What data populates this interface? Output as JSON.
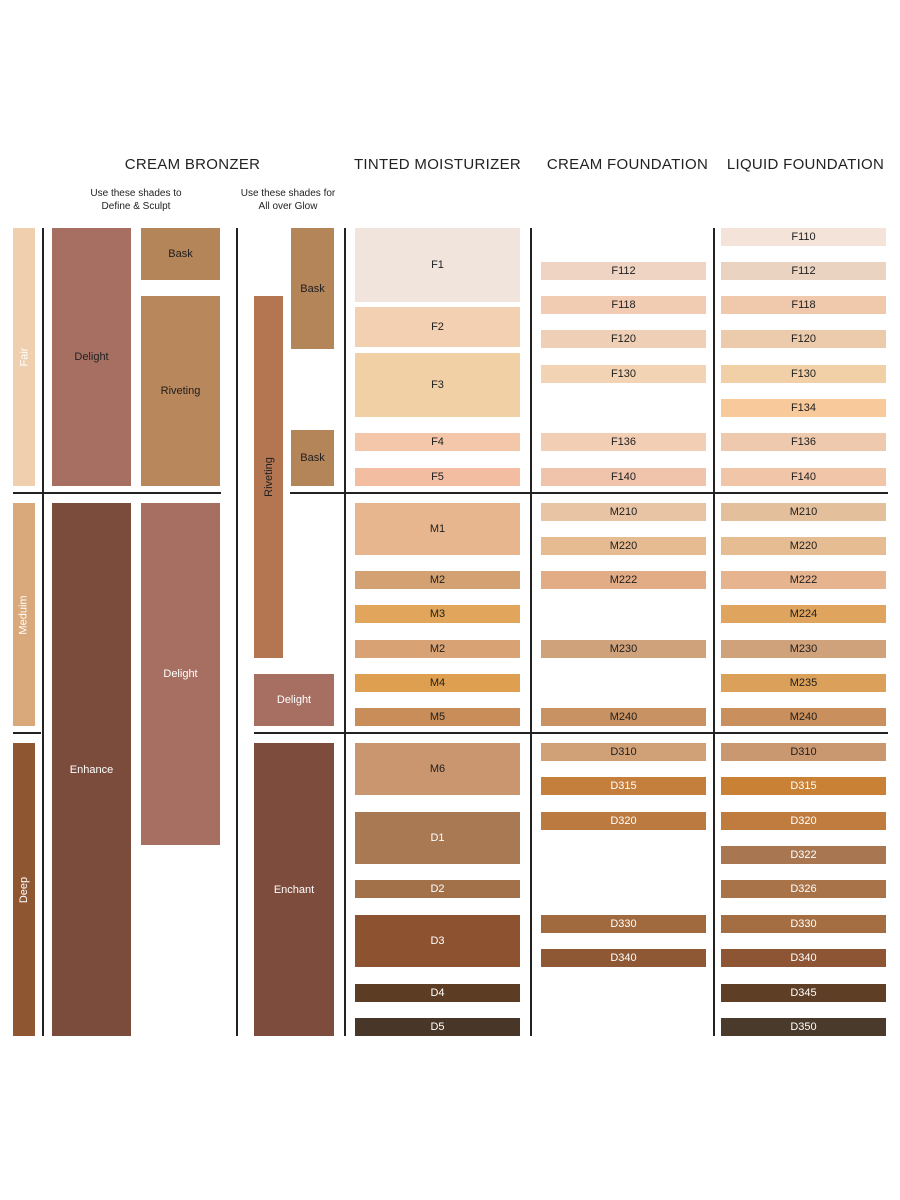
{
  "headers": {
    "cream_bronzer": "CREAM BRONZER",
    "tinted_moisturizer": "TINTED MOISTURIZER",
    "cream_foundation": "CREAM FOUNDATION",
    "liquid_foundation": "LIQUID FOUNDATION"
  },
  "subheaders": {
    "define_line1": "Use these shades to",
    "define_line2": "Define & Sculpt",
    "glow_line1": "Use these shades for",
    "glow_line2": "All over Glow"
  },
  "groups": {
    "fair": "Fair",
    "medium": "Meduim",
    "deep": "Deep"
  },
  "bronzer_define": {
    "delight": "Delight",
    "enhance": "Enhance",
    "bask": "Bask",
    "riveting": "Riveting",
    "delight2": "Delight"
  },
  "bronzer_glow": {
    "bask1": "Bask",
    "riveting": "Riveting",
    "bask2": "Bask",
    "delight": "Delight",
    "enchant": "Enchant"
  },
  "tinted_moisturizer": [
    "F1",
    "F2",
    "F3",
    "F4",
    "F5",
    "M1",
    "M2",
    "M3",
    "M2",
    "M4",
    "M5",
    "M6",
    "D1",
    "D2",
    "D3",
    "D4",
    "D5"
  ],
  "cream_foundation": [
    "F112",
    "F118",
    "F120",
    "F130",
    "F136",
    "F140",
    "M210",
    "M220",
    "M222",
    "M230",
    "M240",
    "D310",
    "D315",
    "D320",
    "D330",
    "D340"
  ],
  "liquid_foundation": [
    "F110",
    "F112",
    "F118",
    "F120",
    "F130",
    "F134",
    "F136",
    "F140",
    "M210",
    "M220",
    "M222",
    "M224",
    "M230",
    "M235",
    "M240",
    "D310",
    "D315",
    "D320",
    "D322",
    "D326",
    "D330",
    "D340",
    "D345",
    "D350"
  ],
  "colors": {
    "fair_group": "#efcfae",
    "medium_group": "#d9a97b",
    "deep_group": "#8e5631",
    "delight": "#a66f61",
    "enhance": "#7b4c3c",
    "bask": "#b5855a",
    "riveting": "#b8875c",
    "riveting_glow": "#b47551",
    "enchant": "#7d4c3d"
  }
}
